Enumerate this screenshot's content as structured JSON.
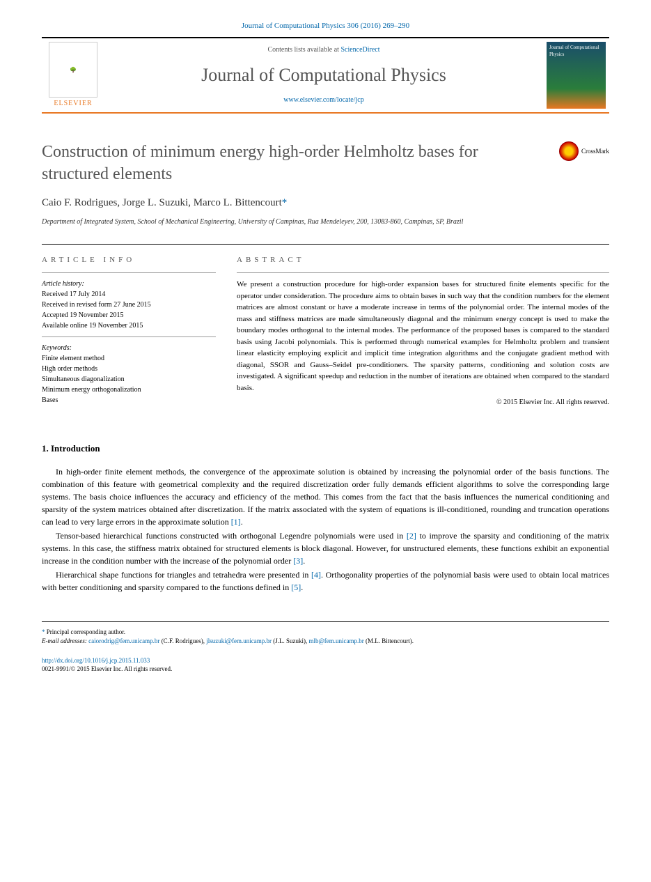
{
  "journal_ref": "Journal of Computational Physics 306 (2016) 269–290",
  "header": {
    "contents_prefix": "Contents lists available at ",
    "contents_link": "ScienceDirect",
    "journal_name": "Journal of Computational Physics",
    "journal_url": "www.elsevier.com/locate/jcp",
    "elsevier": "ELSEVIER",
    "cover_title": "Journal of Computational Physics"
  },
  "crossmark": "CrossMark",
  "title": "Construction of minimum energy high-order Helmholtz bases for structured elements",
  "authors": {
    "a1": "Caio F. Rodrigues",
    "a2": "Jorge L. Suzuki",
    "a3": "Marco L. Bittencourt",
    "star": "*"
  },
  "affiliation": "Department of Integrated System, School of Mechanical Engineering, University of Campinas, Rua Mendeleyev, 200, 13083-860, Campinas, SP, Brazil",
  "info": {
    "heading": "ARTICLE INFO",
    "history_label": "Article history:",
    "received": "Received 17 July 2014",
    "revised": "Received in revised form 27 June 2015",
    "accepted": "Accepted 19 November 2015",
    "online": "Available online 19 November 2015",
    "keywords_label": "Keywords:",
    "kw1": "Finite element method",
    "kw2": "High order methods",
    "kw3": "Simultaneous diagonalization",
    "kw4": "Minimum energy orthogonalization",
    "kw5": "Bases"
  },
  "abstract": {
    "heading": "ABSTRACT",
    "text": "We present a construction procedure for high-order expansion bases for structured finite elements specific for the operator under consideration. The procedure aims to obtain bases in such way that the condition numbers for the element matrices are almost constant or have a moderate increase in terms of the polynomial order. The internal modes of the mass and stiffness matrices are made simultaneously diagonal and the minimum energy concept is used to make the boundary modes orthogonal to the internal modes. The performance of the proposed bases is compared to the standard basis using Jacobi polynomials. This is performed through numerical examples for Helmholtz problem and transient linear elasticity employing explicit and implicit time integration algorithms and the conjugate gradient method with diagonal, SSOR and Gauss–Seidel pre-conditioners. The sparsity patterns, conditioning and solution costs are investigated. A significant speedup and reduction in the number of iterations are obtained when compared to the standard basis.",
    "copyright": "© 2015 Elsevier Inc. All rights reserved."
  },
  "section1": {
    "heading": "1. Introduction",
    "p1": "In high-order finite element methods, the convergence of the approximate solution is obtained by increasing the polynomial order of the basis functions. The combination of this feature with geometrical complexity and the required discretization order fully demands efficient algorithms to solve the corresponding large systems. The basis choice influences the accuracy and efficiency of the method. This comes from the fact that the basis influences the numerical conditioning and sparsity of the system matrices obtained after discretization. If the matrix associated with the system of equations is ill-conditioned, rounding and truncation operations can lead to very large errors in the approximate solution ",
    "ref1": "[1]",
    "p1_end": ".",
    "p2": "Tensor-based hierarchical functions constructed with orthogonal Legendre polynomials were used in ",
    "ref2": "[2]",
    "p2_mid": " to improve the sparsity and conditioning of the matrix systems. In this case, the stiffness matrix obtained for structured elements is block diagonal. However, for unstructured elements, these functions exhibit an exponential increase in the condition number with the increase of the polynomial order ",
    "ref3": "[3]",
    "p2_end": ".",
    "p3": "Hierarchical shape functions for triangles and tetrahedra were presented in ",
    "ref4": "[4]",
    "p3_mid": ". Orthogonality properties of the polynomial basis were used to obtain local matrices with better conditioning and sparsity compared to the functions defined in ",
    "ref5": "[5]",
    "p3_end": "."
  },
  "footer": {
    "corresp": "Principal corresponding author.",
    "email_label": "E-mail addresses: ",
    "email1": "caiorodrig@fem.unicamp.br",
    "email1_name": " (C.F. Rodrigues), ",
    "email2": "jlsuzuki@fem.unicamp.br",
    "email2_name": " (J.L. Suzuki), ",
    "email3": "mlb@fem.unicamp.br",
    "email3_name": " (M.L. Bittencourt).",
    "doi": "http://dx.doi.org/10.1016/j.jcp.2015.11.033",
    "issn": "0021-9991/© 2015 Elsevier Inc. All rights reserved."
  },
  "colors": {
    "link": "#0066aa",
    "orange": "#e87722",
    "heading_gray": "#555555"
  }
}
